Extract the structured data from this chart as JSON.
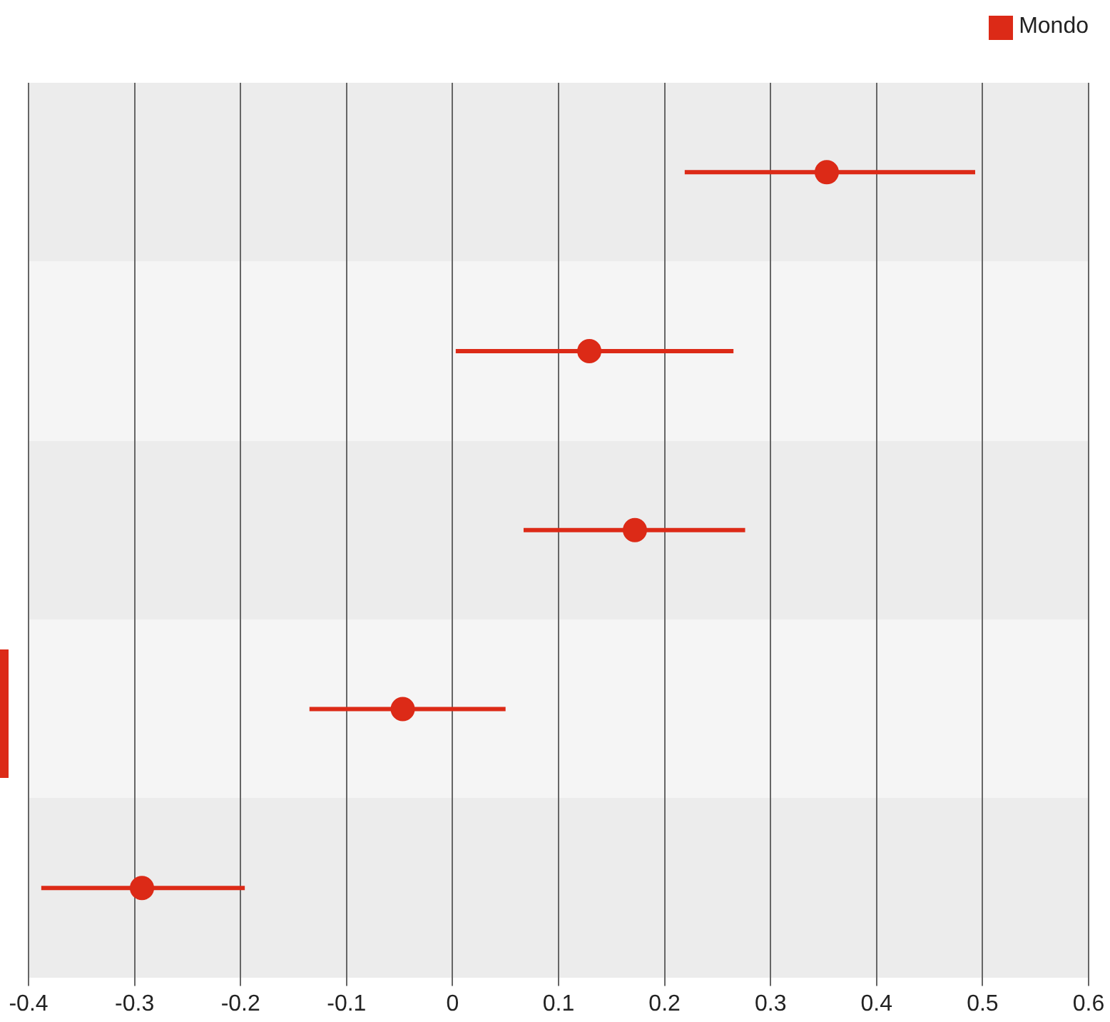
{
  "chart_data": {
    "type": "scatter",
    "orientation": "horizontal",
    "categories": [
      null,
      null,
      null,
      null,
      null
    ],
    "series": [
      {
        "name": "Mondo",
        "color": "#dc2a17",
        "values": [
          0.353,
          0.129,
          0.172,
          -0.047,
          -0.293
        ],
        "errors": [
          [
            0.219,
            0.493
          ],
          [
            0.003,
            0.265
          ],
          [
            0.067,
            0.276
          ],
          [
            -0.135,
            0.05
          ],
          [
            -0.388,
            -0.196
          ]
        ]
      }
    ],
    "xlim": [
      -0.4,
      0.6
    ],
    "xticks": [
      -0.4,
      -0.3,
      -0.2,
      -0.1,
      0,
      0.1,
      0.2,
      0.3,
      0.4,
      0.5,
      0.6
    ],
    "grid": "x",
    "legend": "top right",
    "marker": "circle",
    "tick_labels": "x"
  }
}
